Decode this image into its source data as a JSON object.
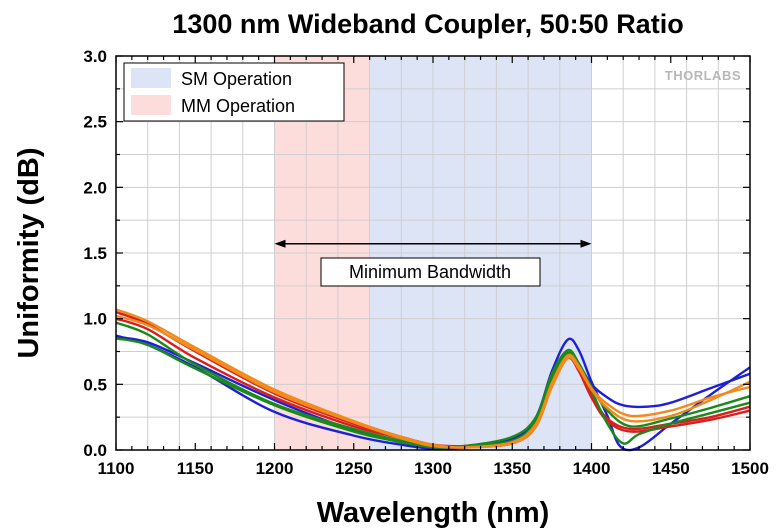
{
  "chart_data": {
    "type": "line",
    "title": "1300 nm Wideband Coupler, 50:50 Ratio",
    "xlabel": "Wavelength (nm)",
    "ylabel": "Uniformity (dB)",
    "xlim": [
      1100,
      1500
    ],
    "ylim": [
      0.0,
      3.0
    ],
    "xticks": [
      1100,
      1150,
      1200,
      1250,
      1300,
      1350,
      1400,
      1450,
      1500
    ],
    "yticks": [
      "0.0",
      "0.5",
      "1.0",
      "1.5",
      "2.0",
      "2.5",
      "3.0"
    ],
    "grid": true,
    "logo": "THORLABS",
    "bands": [
      {
        "label": "MM Operation",
        "x0": 1200,
        "x1": 1260,
        "color": "#fddcdc"
      },
      {
        "label": "SM Operation",
        "x0": 1260,
        "x1": 1400,
        "color": "#dce4f5"
      }
    ],
    "legend": {
      "placement": "top-left",
      "entries": [
        {
          "label": "SM Operation",
          "color": "#dce4f5"
        },
        {
          "label": "MM Operation",
          "color": "#fddcdc"
        }
      ]
    },
    "annotation": {
      "text": "Minimum Bandwidth",
      "x0": 1200,
      "x1": 1400,
      "y": 1.57
    },
    "series": [
      {
        "color": "#1f1fd6",
        "x": [
          1100,
          1120,
          1150,
          1200,
          1250,
          1280,
          1300,
          1320,
          1350,
          1365,
          1375,
          1385,
          1392,
          1400,
          1410,
          1418,
          1430,
          1450,
          1475,
          1500
        ],
        "y": [
          0.87,
          0.8,
          0.63,
          0.29,
          0.11,
          0.04,
          0.01,
          0.02,
          0.08,
          0.25,
          0.6,
          0.84,
          0.76,
          0.52,
          0.26,
          0.03,
          0.02,
          0.2,
          0.42,
          0.63
        ]
      },
      {
        "color": "#1f1fd6",
        "x": [
          1100,
          1120,
          1150,
          1200,
          1250,
          1280,
          1300,
          1320,
          1350,
          1365,
          1375,
          1385,
          1392,
          1400,
          1410,
          1420,
          1435,
          1450,
          1475,
          1500
        ],
        "y": [
          0.86,
          0.82,
          0.66,
          0.38,
          0.15,
          0.06,
          0.02,
          0.03,
          0.09,
          0.22,
          0.52,
          0.72,
          0.65,
          0.5,
          0.4,
          0.34,
          0.33,
          0.36,
          0.47,
          0.58
        ]
      },
      {
        "color": "#d81f1f",
        "x": [
          1100,
          1120,
          1150,
          1200,
          1250,
          1280,
          1300,
          1320,
          1350,
          1365,
          1375,
          1385,
          1392,
          1400,
          1410,
          1425,
          1450,
          1475,
          1500
        ],
        "y": [
          1.0,
          0.92,
          0.7,
          0.4,
          0.18,
          0.09,
          0.03,
          0.02,
          0.05,
          0.18,
          0.5,
          0.7,
          0.6,
          0.4,
          0.22,
          0.14,
          0.18,
          0.23,
          0.3
        ]
      },
      {
        "color": "#d81f1f",
        "x": [
          1100,
          1120,
          1150,
          1200,
          1250,
          1280,
          1300,
          1320,
          1350,
          1365,
          1375,
          1385,
          1392,
          1400,
          1410,
          1425,
          1450,
          1475,
          1500
        ],
        "y": [
          1.05,
          0.96,
          0.75,
          0.43,
          0.2,
          0.1,
          0.04,
          0.03,
          0.06,
          0.2,
          0.53,
          0.73,
          0.62,
          0.42,
          0.24,
          0.16,
          0.2,
          0.25,
          0.33
        ]
      },
      {
        "color": "#1a8a1a",
        "x": [
          1100,
          1120,
          1150,
          1200,
          1250,
          1280,
          1300,
          1320,
          1350,
          1365,
          1375,
          1385,
          1392,
          1400,
          1410,
          1420,
          1430,
          1450,
          1475,
          1500
        ],
        "y": [
          0.97,
          0.88,
          0.65,
          0.35,
          0.16,
          0.07,
          0.03,
          0.03,
          0.07,
          0.22,
          0.55,
          0.74,
          0.63,
          0.45,
          0.2,
          0.05,
          0.12,
          0.2,
          0.28,
          0.36
        ]
      },
      {
        "color": "#1a8a1a",
        "x": [
          1100,
          1120,
          1150,
          1200,
          1250,
          1280,
          1300,
          1320,
          1350,
          1365,
          1375,
          1385,
          1392,
          1400,
          1410,
          1425,
          1450,
          1475,
          1500
        ],
        "y": [
          0.85,
          0.8,
          0.62,
          0.34,
          0.14,
          0.06,
          0.02,
          0.03,
          0.1,
          0.25,
          0.58,
          0.76,
          0.66,
          0.48,
          0.3,
          0.18,
          0.24,
          0.32,
          0.41
        ]
      },
      {
        "color": "#f08a1a",
        "x": [
          1100,
          1120,
          1150,
          1200,
          1250,
          1280,
          1300,
          1320,
          1350,
          1365,
          1375,
          1385,
          1392,
          1400,
          1410,
          1425,
          1450,
          1475,
          1500
        ],
        "y": [
          1.07,
          0.98,
          0.78,
          0.46,
          0.22,
          0.1,
          0.04,
          0.02,
          0.05,
          0.18,
          0.48,
          0.7,
          0.62,
          0.46,
          0.32,
          0.22,
          0.26,
          0.38,
          0.52
        ]
      },
      {
        "color": "#f08a1a",
        "x": [
          1100,
          1120,
          1150,
          1200,
          1250,
          1280,
          1300,
          1320,
          1350,
          1365,
          1375,
          1385,
          1392,
          1400,
          1410,
          1425,
          1450,
          1475,
          1500
        ],
        "y": [
          1.02,
          0.95,
          0.76,
          0.44,
          0.21,
          0.09,
          0.03,
          0.02,
          0.06,
          0.2,
          0.51,
          0.72,
          0.64,
          0.47,
          0.35,
          0.26,
          0.3,
          0.4,
          0.48
        ]
      }
    ]
  }
}
